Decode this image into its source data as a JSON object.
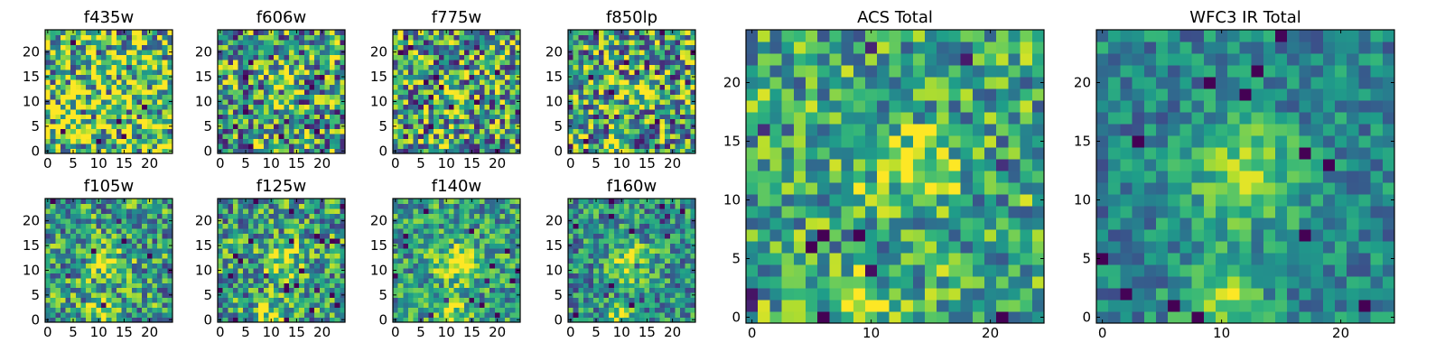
{
  "chart_data": [
    {
      "type": "heatmap",
      "title": "f435w",
      "grid_size": 25,
      "colormap": "viridis",
      "xlim": [
        0,
        24
      ],
      "ylim": [
        0,
        24
      ],
      "xticks": [
        "0",
        "5",
        "10",
        "15",
        "20"
      ],
      "yticks": [
        "0",
        "5",
        "10",
        "15",
        "20"
      ],
      "blob": [],
      "noise": 0.55,
      "base": 0.72,
      "seed": 11
    },
    {
      "type": "heatmap",
      "title": "f606w",
      "grid_size": 25,
      "colormap": "viridis",
      "xlim": [
        0,
        24
      ],
      "ylim": [
        0,
        24
      ],
      "xticks": [
        "0",
        "5",
        "10",
        "15",
        "20"
      ],
      "yticks": [
        "0",
        "5",
        "10",
        "15",
        "20"
      ],
      "blob": [
        {
          "x": 11,
          "y": 13,
          "s": 2.2,
          "a": 0.35
        },
        {
          "x": 9,
          "y": 1,
          "s": 1.5,
          "a": 0.25
        }
      ],
      "noise": 0.5,
      "base": 0.55,
      "seed": 23
    },
    {
      "type": "heatmap",
      "title": "f775w",
      "grid_size": 25,
      "colormap": "viridis",
      "xlim": [
        0,
        24
      ],
      "ylim": [
        0,
        24
      ],
      "xticks": [
        "0",
        "5",
        "10",
        "15",
        "20"
      ],
      "yticks": [
        "0",
        "5",
        "10",
        "15",
        "20"
      ],
      "blob": [
        {
          "x": 11,
          "y": 11,
          "s": 2.2,
          "a": 0.35
        },
        {
          "x": 10,
          "y": 1,
          "s": 1.5,
          "a": 0.25
        }
      ],
      "noise": 0.5,
      "base": 0.55,
      "seed": 37
    },
    {
      "type": "heatmap",
      "title": "f850lp",
      "grid_size": 25,
      "colormap": "viridis",
      "xlim": [
        0,
        24
      ],
      "ylim": [
        0,
        24
      ],
      "xticks": [
        "0",
        "5",
        "10",
        "15",
        "20"
      ],
      "yticks": [
        "0",
        "5",
        "10",
        "15",
        "20"
      ],
      "blob": [
        {
          "x": 13,
          "y": 12,
          "s": 2.2,
          "a": 0.3
        },
        {
          "x": 8,
          "y": 1,
          "s": 1.3,
          "a": 0.45
        }
      ],
      "noise": 0.5,
      "base": 0.55,
      "seed": 41
    },
    {
      "type": "heatmap",
      "title": "f105w",
      "grid_size": 25,
      "colormap": "viridis",
      "xlim": [
        0,
        24
      ],
      "ylim": [
        0,
        24
      ],
      "xticks": [
        "0",
        "5",
        "10",
        "15",
        "20"
      ],
      "yticks": [
        "0",
        "5",
        "10",
        "15",
        "20"
      ],
      "blob": [
        {
          "x": 12,
          "y": 11,
          "s": 2.5,
          "a": 0.4
        },
        {
          "x": 11,
          "y": 2,
          "s": 2.0,
          "a": 0.35
        }
      ],
      "noise": 0.38,
      "base": 0.55,
      "seed": 53
    },
    {
      "type": "heatmap",
      "title": "f125w",
      "grid_size": 25,
      "colormap": "viridis",
      "xlim": [
        0,
        24
      ],
      "ylim": [
        0,
        24
      ],
      "xticks": [
        "0",
        "5",
        "10",
        "15",
        "20"
      ],
      "yticks": [
        "0",
        "5",
        "10",
        "15",
        "20"
      ],
      "blob": [
        {
          "x": 12,
          "y": 12,
          "s": 2.5,
          "a": 0.4
        },
        {
          "x": 10,
          "y": 1,
          "s": 2.0,
          "a": 0.35
        }
      ],
      "noise": 0.38,
      "base": 0.55,
      "seed": 67
    },
    {
      "type": "heatmap",
      "title": "f140w",
      "grid_size": 25,
      "colormap": "viridis",
      "xlim": [
        0,
        24
      ],
      "ylim": [
        0,
        24
      ],
      "xticks": [
        "0",
        "5",
        "10",
        "15",
        "20"
      ],
      "yticks": [
        "0",
        "5",
        "10",
        "15",
        "20"
      ],
      "blob": [
        {
          "x": 12,
          "y": 12,
          "s": 2.7,
          "a": 0.45
        },
        {
          "x": 11,
          "y": 2,
          "s": 2.2,
          "a": 0.35
        }
      ],
      "noise": 0.32,
      "base": 0.55,
      "seed": 71
    },
    {
      "type": "heatmap",
      "title": "f160w",
      "grid_size": 25,
      "colormap": "viridis",
      "xlim": [
        0,
        24
      ],
      "ylim": [
        0,
        24
      ],
      "xticks": [
        "0",
        "5",
        "10",
        "15",
        "20"
      ],
      "yticks": [
        "0",
        "5",
        "10",
        "15",
        "20"
      ],
      "blob": [
        {
          "x": 12,
          "y": 12,
          "s": 2.6,
          "a": 0.45
        },
        {
          "x": 10,
          "y": 1,
          "s": 1.8,
          "a": 0.4
        }
      ],
      "noise": 0.32,
      "base": 0.5,
      "seed": 89
    },
    {
      "type": "heatmap",
      "title": "ACS Total",
      "grid_size": 25,
      "colormap": "viridis",
      "xlim": [
        0,
        24
      ],
      "ylim": [
        0,
        24
      ],
      "xticks": [
        "0",
        "10",
        "20"
      ],
      "yticks": [
        "0",
        "5",
        "10",
        "15",
        "20"
      ],
      "blob": [
        {
          "x": 13,
          "y": 13,
          "s": 2.5,
          "a": 0.3
        },
        {
          "x": 9,
          "y": 1,
          "s": 1.8,
          "a": 0.35
        }
      ],
      "noise": 0.35,
      "base": 0.6,
      "seed": 101
    },
    {
      "type": "heatmap",
      "title": "WFC3 IR Total",
      "grid_size": 25,
      "colormap": "viridis",
      "xlim": [
        0,
        24
      ],
      "ylim": [
        0,
        24
      ],
      "xticks": [
        "0",
        "10",
        "20"
      ],
      "yticks": [
        "0",
        "5",
        "10",
        "15",
        "20"
      ],
      "blob": [
        {
          "x": 12,
          "y": 12,
          "s": 3.0,
          "a": 0.45
        },
        {
          "x": 10,
          "y": 1.5,
          "s": 2.2,
          "a": 0.45
        }
      ],
      "noise": 0.22,
      "base": 0.45,
      "seed": 113
    }
  ]
}
